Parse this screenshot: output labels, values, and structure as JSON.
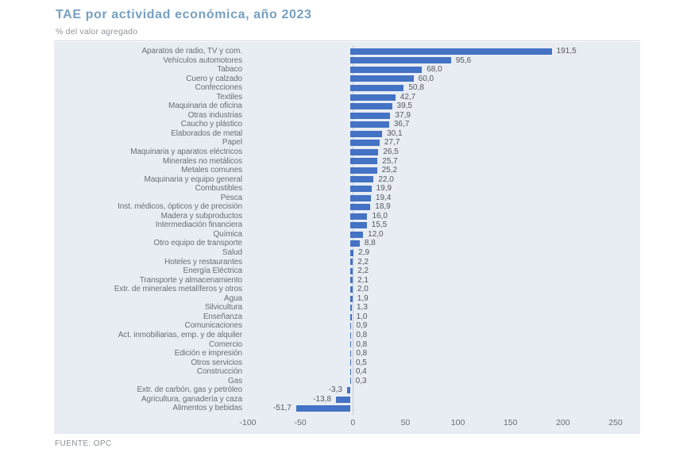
{
  "header": {
    "title": "TAE por actividad económica, año 2023",
    "subtitle": "% del valor agregado"
  },
  "footer": {
    "source": "FUENTE: OPC"
  },
  "colors": {
    "bar": "#4472c4",
    "panel_bg": "#e8ecf3",
    "title_text": "#76a0c1",
    "subtitle_text": "#909499",
    "category_text": "#6a6f76",
    "value_text": "#54585e",
    "tick_text": "#6a6f76",
    "zero_line": "#c3cad6",
    "header_rule": "#d6dade",
    "source_text": "#8c9096"
  },
  "chart_data": {
    "type": "bar",
    "orientation": "horizontal",
    "title": "TAE por actividad económica, año 2023",
    "subtitle": "% del valor agregado",
    "source": "FUENTE: OPC",
    "xlabel": "",
    "ylabel": "",
    "xlim": [
      -100,
      250
    ],
    "xticks": [
      -100,
      -50,
      0,
      50,
      100,
      150,
      200,
      250
    ],
    "grid": "zero-line-only",
    "legend": false,
    "decimal_separator": ",",
    "categories": [
      "Aparatos de radio, TV y com.",
      "Vehículos automotores",
      "Tabaco",
      "Cuero y calzado",
      "Confecciones",
      "Textiles",
      "Maquinaria de oficina",
      "Otras industrias",
      "Caucho y plástico",
      "Elaborados de metal",
      "Papel",
      "Maquinaria y aparatos eléctricos",
      "Minerales no metálicos",
      "Metales comunes",
      "Maquinaria y equipo general",
      "Combustibles",
      "Pesca",
      "Inst. médicos, ópticos y de precisión",
      "Madera y subproductos",
      "Intermediación financiera",
      "Química",
      "Otro equipo de transporte",
      "Salud",
      "Hoteles y restaurantes",
      "Energía Eléctrica",
      "Transporte y almacenamiento",
      "Extr. de minerales metalíferos y otros",
      "Agua",
      "Silvicultura",
      "Enseñanza",
      "Comunicaciones",
      "Act. inmobiliarias, emp. y de alquiler",
      "Comercio",
      "Edición e impresión",
      "Otros servicios",
      "Construcción",
      "Gas",
      "Extr. de carbón, gas y petróleo",
      "Agricultura, ganadería y caza",
      "Alimentos y bebidas"
    ],
    "values": [
      191.5,
      95.6,
      68.0,
      60.0,
      50.8,
      42.7,
      39.5,
      37.9,
      36.7,
      30.1,
      27.7,
      26.5,
      25.7,
      25.2,
      22.0,
      19.9,
      19.4,
      18.9,
      16.0,
      15.5,
      12.0,
      8.8,
      2.9,
      2.2,
      2.2,
      2.1,
      2.0,
      1.9,
      1.3,
      1.0,
      0.9,
      0.8,
      0.8,
      0.8,
      0.5,
      0.4,
      0.3,
      -3.3,
      -13.8,
      -51.7
    ]
  }
}
